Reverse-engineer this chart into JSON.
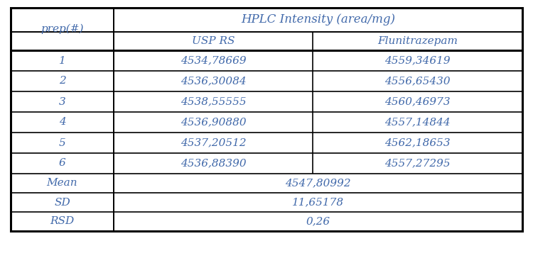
{
  "header_top": "HPLC Intensity (area/mg)",
  "header_col1": "prep(#)",
  "header_col2": "USP RS",
  "header_col3": "Flunitrazepam",
  "rows": [
    [
      "1",
      "4534,78669",
      "4559,34619"
    ],
    [
      "2",
      "4536,30084",
      "4556,65430"
    ],
    [
      "3",
      "4538,55555",
      "4560,46973"
    ],
    [
      "4",
      "4536,90880",
      "4557,14844"
    ],
    [
      "5",
      "4537,20512",
      "4562,18653"
    ],
    [
      "6",
      "4536,88390",
      "4557,27295"
    ]
  ],
  "stat_rows": [
    [
      "Mean",
      "4547,80992"
    ],
    [
      "SD",
      "11,65178"
    ],
    [
      "RSD",
      "0,26"
    ]
  ],
  "text_color": "#4169aa",
  "border_color": "#000000",
  "bg_color": "#ffffff",
  "font_size": 11,
  "header_font_size": 12
}
